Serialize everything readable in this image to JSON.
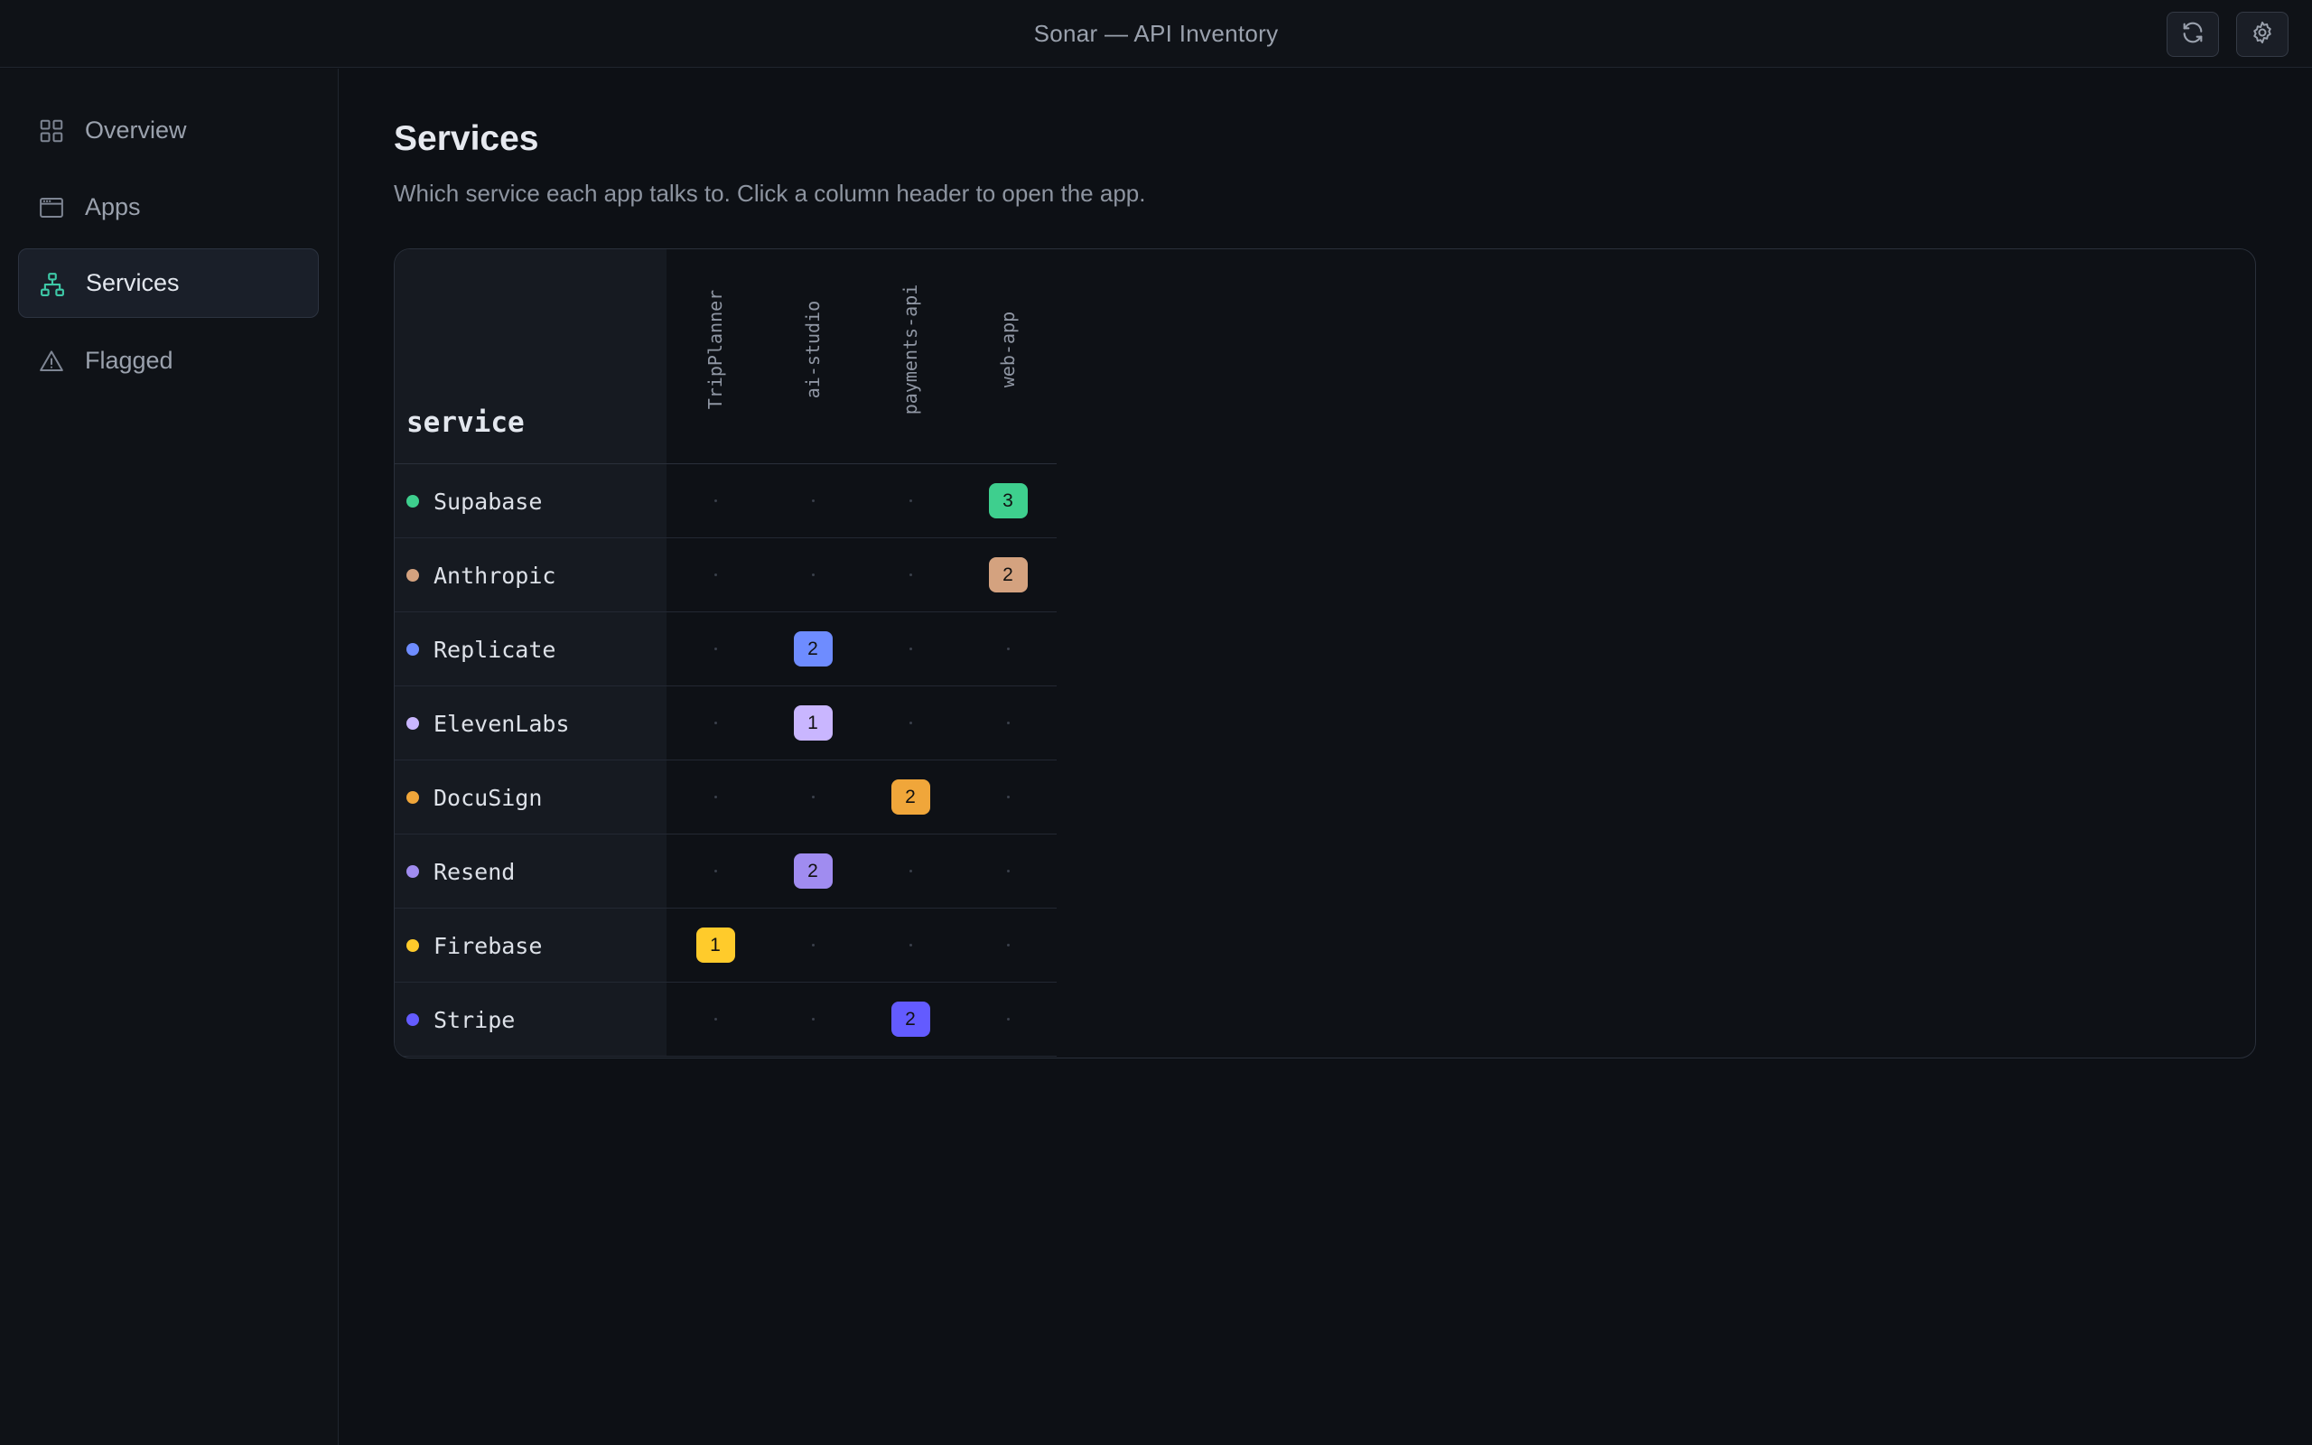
{
  "window": {
    "title": "Sonar — API Inventory"
  },
  "toolbar": {
    "refresh_icon": "refresh-icon",
    "settings_icon": "gear-icon"
  },
  "sidebar": {
    "items": [
      {
        "label": "Overview",
        "icon": "grid-icon",
        "active": false
      },
      {
        "label": "Apps",
        "icon": "window-icon",
        "active": false
      },
      {
        "label": "Services",
        "icon": "network-icon",
        "active": true
      },
      {
        "label": "Flagged",
        "icon": "warning-icon",
        "active": false
      }
    ]
  },
  "main": {
    "title": "Services",
    "subtitle": "Which service each app talks to. Click a column header to open the app."
  },
  "matrix": {
    "row_header": "service",
    "columns": [
      "TripPlanner",
      "ai-studio",
      "payments-api",
      "web-app"
    ],
    "rows": [
      {
        "service": "Supabase",
        "color": "#3ecf8e",
        "counts": [
          null,
          null,
          null,
          3
        ]
      },
      {
        "service": "Anthropic",
        "color": "#d4a27f",
        "counts": [
          null,
          null,
          null,
          2
        ]
      },
      {
        "service": "Replicate",
        "color": "#6e8cff",
        "counts": [
          null,
          2,
          null,
          null
        ]
      },
      {
        "service": "ElevenLabs",
        "color": "#c9b6ff",
        "counts": [
          null,
          1,
          null,
          null
        ]
      },
      {
        "service": "DocuSign",
        "color": "#f0a63a",
        "counts": [
          null,
          null,
          2,
          null
        ]
      },
      {
        "service": "Resend",
        "color": "#a08cf0",
        "counts": [
          null,
          2,
          null,
          null
        ]
      },
      {
        "service": "Firebase",
        "color": "#ffcb2b",
        "counts": [
          1,
          null,
          null,
          null
        ]
      },
      {
        "service": "Stripe",
        "color": "#635bff",
        "counts": [
          null,
          null,
          2,
          null
        ]
      }
    ]
  }
}
